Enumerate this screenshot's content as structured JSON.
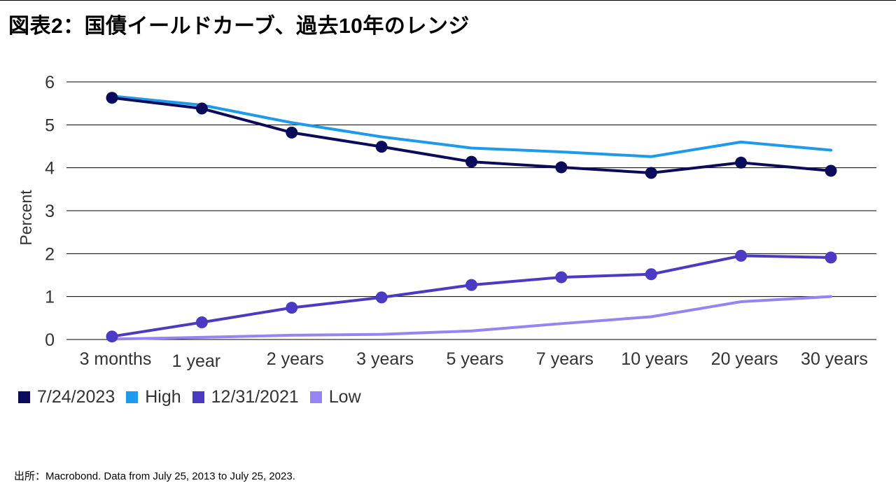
{
  "title": "図表2：国債イールドカーブ、過去10年のレンジ",
  "source": "出所：Macrobond. Data from July 25, 2013 to July 25, 2023.",
  "chart_data": {
    "type": "line",
    "title": "図表2：国債イールドカーブ、過去10年のレンジ",
    "xlabel": "",
    "ylabel": "Percent",
    "ylim": [
      0,
      6
    ],
    "yticks": [
      0,
      1,
      2,
      3,
      4,
      5,
      6
    ],
    "grid": true,
    "legend_position": "bottom-left",
    "categories": [
      "3 months",
      "1 year",
      "2 years",
      "3 years",
      "5 years",
      "7 years",
      "10 years",
      "20 years",
      "30 years"
    ],
    "series": [
      {
        "name": "7/24/2023",
        "color": "#0b0b5c",
        "markers": true,
        "values": [
          5.63,
          5.38,
          4.82,
          4.49,
          4.14,
          4.01,
          3.88,
          4.12,
          3.93
        ]
      },
      {
        "name": "High",
        "color": "#1b9aee",
        "markers": false,
        "values": [
          5.67,
          5.46,
          5.05,
          4.72,
          4.46,
          4.37,
          4.26,
          4.6,
          4.41
        ]
      },
      {
        "name": "12/31/2021",
        "color": "#4b3bc4",
        "markers": true,
        "values": [
          0.07,
          0.4,
          0.74,
          0.98,
          1.27,
          1.45,
          1.52,
          1.95,
          1.91
        ]
      },
      {
        "name": "Low",
        "color": "#9683f4",
        "markers": false,
        "values": [
          0.01,
          0.05,
          0.1,
          0.12,
          0.2,
          0.37,
          0.53,
          0.88,
          1.0
        ]
      }
    ]
  }
}
